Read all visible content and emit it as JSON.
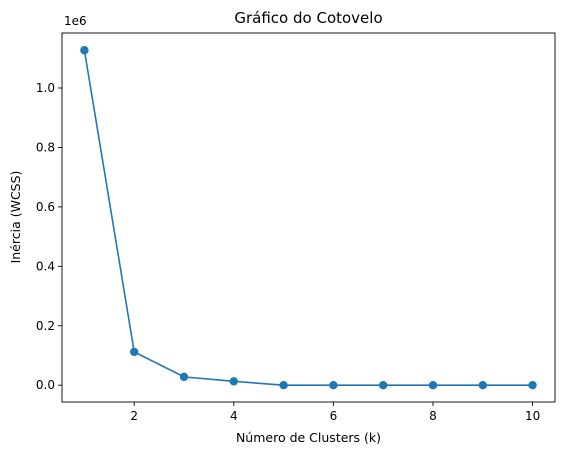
{
  "chart_data": {
    "type": "line",
    "title": "Gráfico do Cotovelo",
    "xlabel": "Número de Clusters (k)",
    "ylabel": "Inércia (WCSS)",
    "offset_label": "1e6",
    "x": [
      1,
      2,
      3,
      4,
      5,
      6,
      7,
      8,
      9,
      10
    ],
    "series": [
      {
        "values": [
          1.127,
          0.112,
          0.028,
          0.013,
          0.0,
          0.0,
          0.0,
          0.0,
          0.0,
          0.0
        ]
      }
    ],
    "xlim": [
      0.55,
      10.45
    ],
    "ylim": [
      -0.0565,
      1.185
    ],
    "xticks": [
      2,
      4,
      6,
      8,
      10
    ],
    "xtick_labels": [
      "2",
      "4",
      "6",
      "8",
      "10"
    ],
    "yticks": [
      0.0,
      0.2,
      0.4,
      0.6,
      0.8,
      1.0
    ],
    "ytick_labels": [
      "0.0",
      "0.2",
      "0.4",
      "0.6",
      "0.8",
      "1.0"
    ],
    "grid": false,
    "marker": "circle",
    "line_color": "#1f77b4"
  }
}
